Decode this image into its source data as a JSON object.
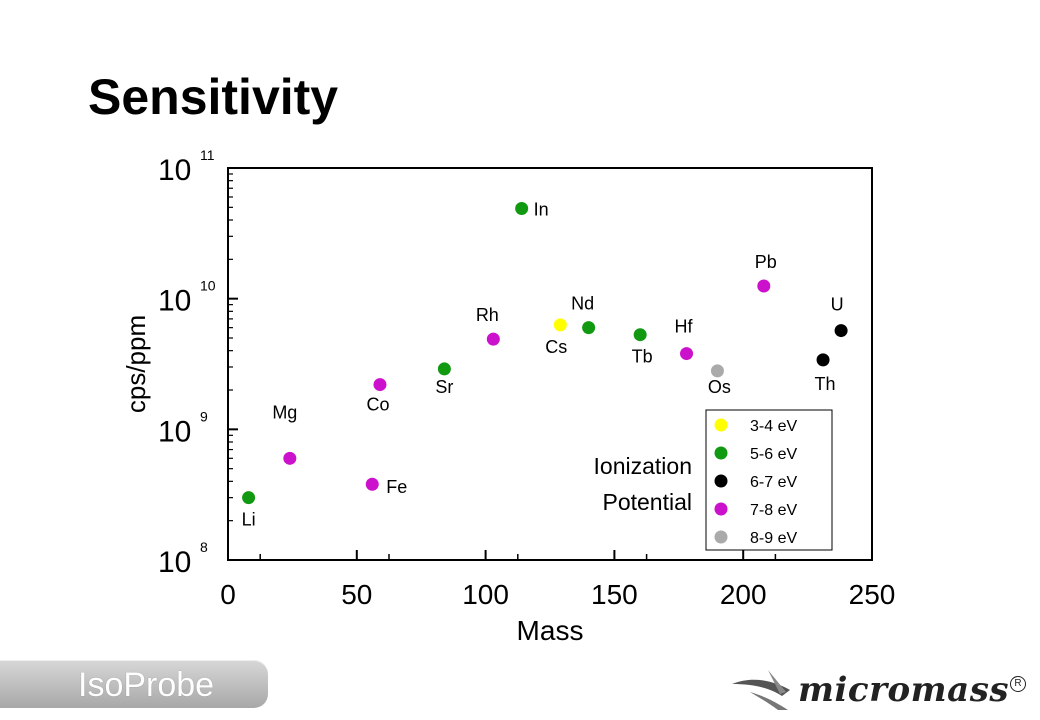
{
  "title": "Sensitivity",
  "chart_data": {
    "type": "scatter",
    "xlabel": "Mass",
    "ylabel": "cps/ppm",
    "xlim": [
      0,
      250
    ],
    "ylim": [
      100000000,
      100000000000
    ],
    "y_scale": "log",
    "grid": false,
    "x_ticks": [
      "0",
      "50",
      "100",
      "150",
      "200",
      "250"
    ],
    "y_ticks": [
      {
        "base": "10",
        "exp": "8",
        "value": 100000000
      },
      {
        "base": "10",
        "exp": "9",
        "value": 1000000000
      },
      {
        "base": "10",
        "exp": "10",
        "value": 10000000000
      },
      {
        "base": "10",
        "exp": "11",
        "value": 100000000000
      }
    ],
    "legend_title": "Ionization Potential",
    "legend_placement": "bottom-right",
    "series": [
      {
        "name": "3-4 eV",
        "color": "#ffff00",
        "points": [
          {
            "label": "Cs",
            "x": 129,
            "y": 6300000000
          }
        ]
      },
      {
        "name": "5-6 eV",
        "color": "#119911",
        "points": [
          {
            "label": "Li",
            "x": 8,
            "y": 300000000
          },
          {
            "label": "Sr",
            "x": 84,
            "y": 2900000000
          },
          {
            "label": "In",
            "x": 114,
            "y": 49000000000
          },
          {
            "label": "Nd",
            "x": 140,
            "y": 6000000000
          },
          {
            "label": "Tb",
            "x": 160,
            "y": 5300000000
          }
        ]
      },
      {
        "name": "6-7 eV",
        "color": "#000000",
        "points": [
          {
            "label": "Th",
            "x": 231,
            "y": 3400000000
          },
          {
            "label": "U",
            "x": 238,
            "y": 5700000000
          }
        ]
      },
      {
        "name": "7-8 eV",
        "color": "#cc11cc",
        "points": [
          {
            "label": "Mg",
            "x": 24,
            "y": 600000000
          },
          {
            "label": "Fe",
            "x": 56,
            "y": 380000000
          },
          {
            "label": "Co",
            "x": 59,
            "y": 2200000000
          },
          {
            "label": "Rh",
            "x": 103,
            "y": 4900000000
          },
          {
            "label": "Hf",
            "x": 178,
            "y": 3800000000
          },
          {
            "label": "Pb",
            "x": 208,
            "y": 12500000000
          }
        ]
      },
      {
        "name": "8-9 eV",
        "color": "#aaaaaa",
        "points": [
          {
            "label": "Os",
            "x": 190,
            "y": 2800000000
          }
        ]
      }
    ]
  },
  "footer": {
    "product": "IsoProbe",
    "vendor": "micromass",
    "registered_mark": "R"
  }
}
